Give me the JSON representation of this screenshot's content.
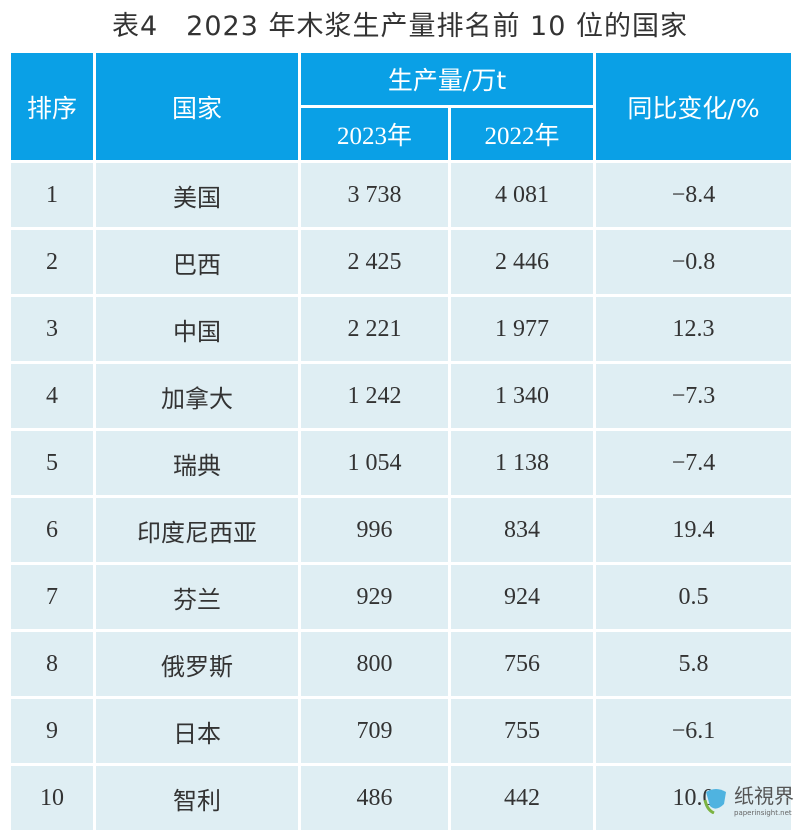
{
  "title": "表4　2023 年木浆生产量排名前 10 位的国家",
  "header": {
    "rank": "排序",
    "country": "国家",
    "production": "生产量/万t",
    "y2023": "2023年",
    "y2022": "2022年",
    "change": "同比变化/%"
  },
  "rows": [
    {
      "rank": "1",
      "country": "美国",
      "y2023": "3 738",
      "y2022": "4 081",
      "change": "−8.4"
    },
    {
      "rank": "2",
      "country": "巴西",
      "y2023": "2 425",
      "y2022": "2 446",
      "change": "−0.8"
    },
    {
      "rank": "3",
      "country": "中国",
      "y2023": "2 221",
      "y2022": "1 977",
      "change": "12.3"
    },
    {
      "rank": "4",
      "country": "加拿大",
      "y2023": "1 242",
      "y2022": "1 340",
      "change": "−7.3"
    },
    {
      "rank": "5",
      "country": "瑞典",
      "y2023": "1 054",
      "y2022": "1 138",
      "change": "−7.4"
    },
    {
      "rank": "6",
      "country": "印度尼西亚",
      "y2023": "996",
      "y2022": "834",
      "change": "19.4"
    },
    {
      "rank": "7",
      "country": "芬兰",
      "y2023": "929",
      "y2022": "924",
      "change": "0.5"
    },
    {
      "rank": "8",
      "country": "俄罗斯",
      "y2023": "800",
      "y2022": "756",
      "change": "5.8"
    },
    {
      "rank": "9",
      "country": "日本",
      "y2023": "709",
      "y2022": "755",
      "change": "−6.1"
    },
    {
      "rank": "10",
      "country": "智利",
      "y2023": "486",
      "y2022": "442",
      "change": "10.0"
    }
  ],
  "watermark": {
    "name": "纸視界",
    "url": "paperinsight.net"
  },
  "colors": {
    "header": "#0aa0e6",
    "row": "#dfeef3"
  }
}
